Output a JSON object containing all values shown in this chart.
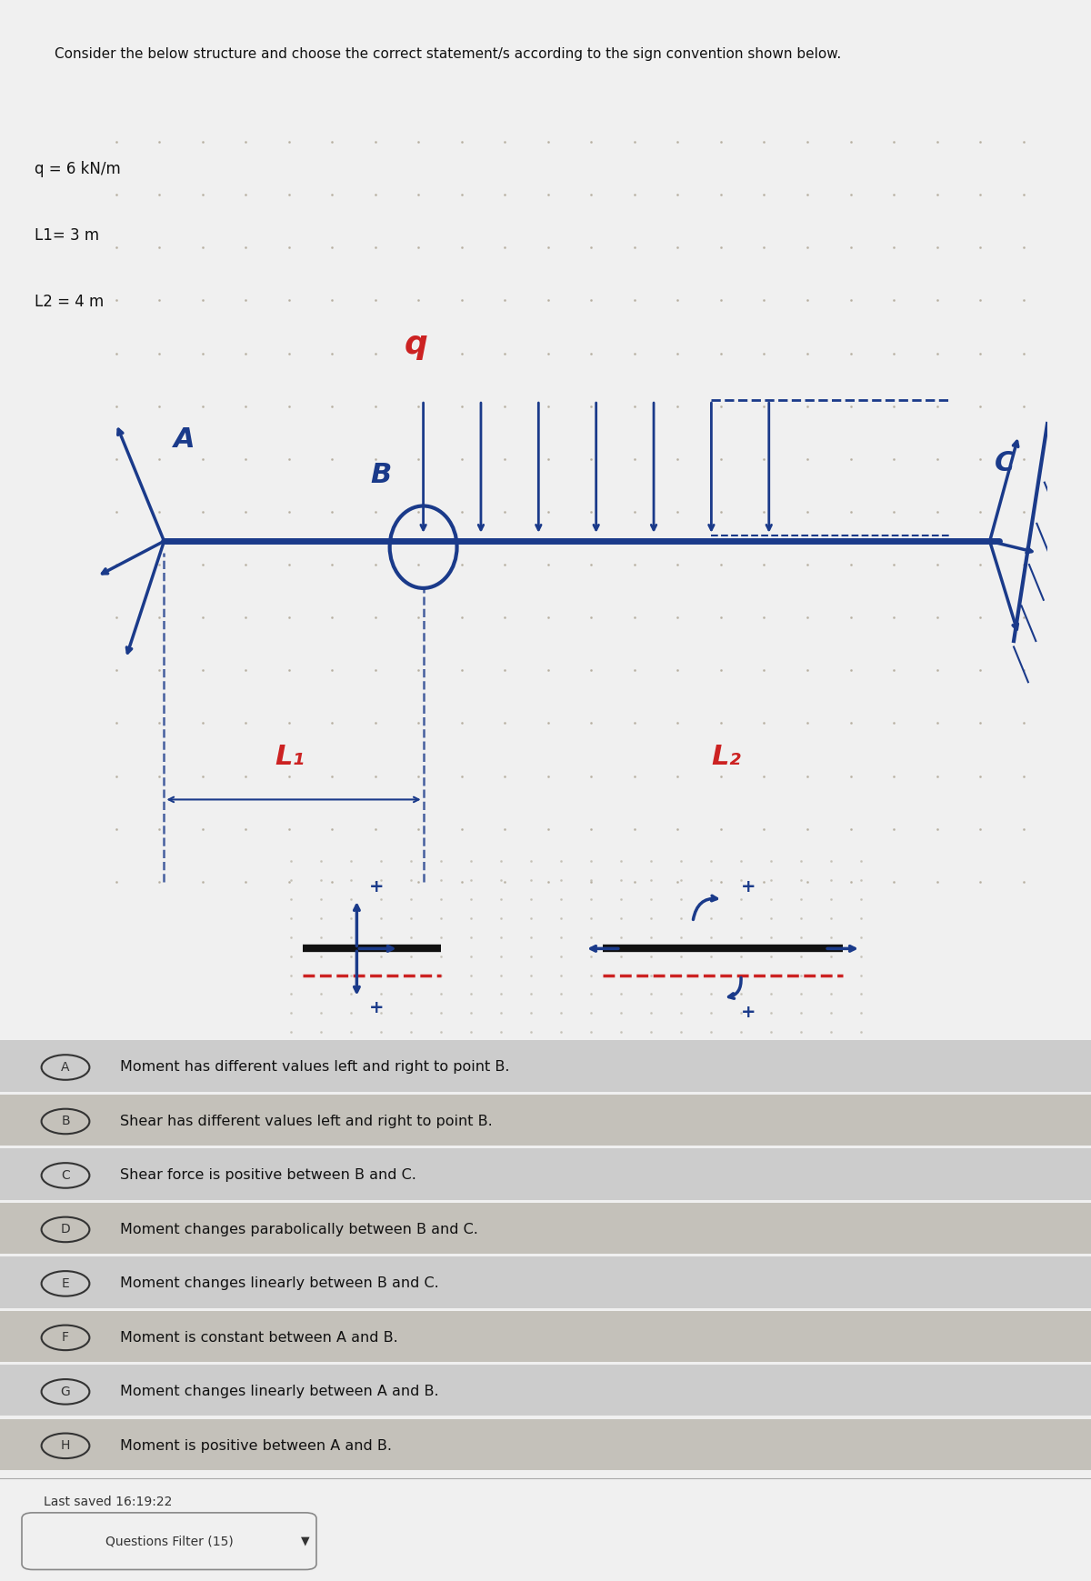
{
  "title_text": "Consider the below structure and choose the correct statement/s according to the sign convention shown below.",
  "params": [
    "q = 6 kN/m",
    "L1= 3 m",
    "L2 = 4 m"
  ],
  "bg_top": "#e8e8e8",
  "bg_bottom": "#d8d8d8",
  "dotted_bg_color": "#c8c4b8",
  "beam_color": "#1a3a8a",
  "annotation_color": "#1a3a8a",
  "red_color": "#cc2222",
  "options": [
    {
      "label": "A",
      "text": "Moment has different values left and right to point B."
    },
    {
      "label": "B",
      "text": "Shear has different values left and right to point B."
    },
    {
      "label": "C",
      "text": "Shear force is positive between B and C."
    },
    {
      "label": "D",
      "text": "Moment changes parabolically between B and C."
    },
    {
      "label": "E",
      "text": "Moment changes linearly between B and C."
    },
    {
      "label": "F",
      "text": "Moment is constant between A and B."
    },
    {
      "label": "G",
      "text": "Moment changes linearly between A and B."
    },
    {
      "label": "H",
      "text": "Moment is positive between A and B."
    }
  ],
  "footer_text": "Last saved 16:19:22",
  "button_text": "Questions Filter (15)"
}
